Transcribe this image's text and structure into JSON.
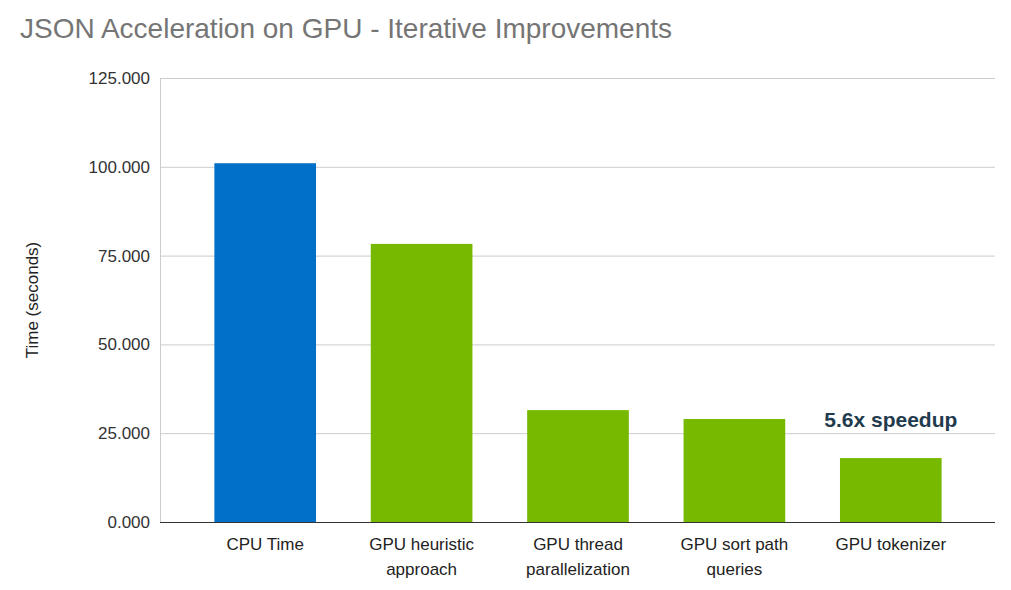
{
  "chart_data": {
    "type": "bar",
    "title": "JSON Acceleration on GPU - Iterative Improvements",
    "y_label": "Time (seconds)",
    "categories": [
      "CPU Time",
      "GPU heuristic approach",
      "GPU thread parallelization",
      "GPU sort path queries",
      "GPU tokenizer"
    ],
    "values": [
      101,
      78.3,
      31.5,
      29.0,
      18.0
    ],
    "colors": [
      "#0070c8",
      "#76b900",
      "#76b900",
      "#76b900",
      "#76b900"
    ],
    "ylim": [
      0,
      125
    ],
    "yticks": [
      {
        "value": 0,
        "label": "0.000"
      },
      {
        "value": 25,
        "label": "25.000"
      },
      {
        "value": 50,
        "label": "50.000"
      },
      {
        "value": 75,
        "label": "75.000"
      },
      {
        "value": 100,
        "label": "100.000"
      },
      {
        "value": 125,
        "label": "125.000"
      }
    ],
    "grid": true,
    "annotation": "5.6x speedup"
  }
}
